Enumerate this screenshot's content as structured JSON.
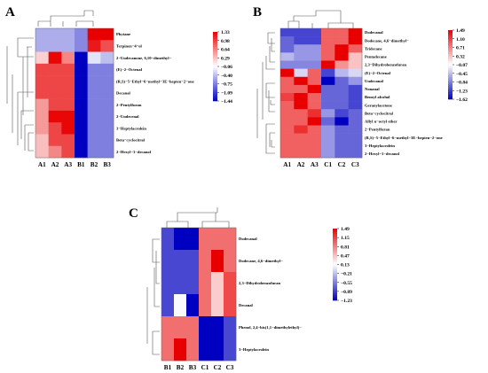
{
  "chart_data": [
    {
      "type": "heatmap",
      "panel_label": "A",
      "columns": [
        "A1",
        "A2",
        "A3",
        "B1",
        "B2",
        "B3"
      ],
      "rows": [
        "Phytane",
        "Terpinen−4−ol",
        "2−Undecanone, 6,10−dimethyl−",
        "(E)−2−Octenal",
        "(R,S)−5−Ethyl−6−methyl−3E−hepten−2−one",
        "Decanal",
        "2−Pentylfuran",
        "2−Undecenal",
        "3−Heptylacrolein",
        "Beta−cyclocitral",
        "2−Hexyl−1−decanol"
      ],
      "values": [
        [
          -0.5,
          -0.5,
          -0.5,
          -0.7,
          1.33,
          1.33
        ],
        [
          -0.5,
          -0.5,
          -0.5,
          -0.7,
          1.2,
          0.9
        ],
        [
          0.2,
          1.3,
          0.6,
          -1.44,
          -0.2,
          -0.4
        ],
        [
          0.95,
          0.95,
          0.95,
          -1.44,
          -0.75,
          -0.75
        ],
        [
          0.95,
          0.95,
          0.95,
          -1.44,
          -0.75,
          -0.75
        ],
        [
          0.95,
          0.95,
          0.95,
          -1.44,
          -0.75,
          -0.75
        ],
        [
          0.5,
          0.95,
          0.95,
          -1.44,
          -0.75,
          -0.75
        ],
        [
          0.5,
          1.3,
          1.3,
          -1.44,
          -0.75,
          -0.75
        ],
        [
          0.5,
          0.95,
          1.3,
          -1.44,
          -0.75,
          -0.75
        ],
        [
          0.3,
          0.95,
          0.95,
          -1.44,
          -0.75,
          -0.75
        ],
        [
          0.3,
          0.6,
          0.95,
          -1.44,
          -0.75,
          -0.75
        ]
      ],
      "legend_ticks": [
        "1.33",
        "0.98",
        "0.64",
        "0.29",
        "−0.06",
        "−0.40",
        "−0.75",
        "−1.09",
        "−1.44"
      ],
      "vmin": -1.44,
      "vmax": 1.33
    },
    {
      "type": "heatmap",
      "panel_label": "B",
      "columns": [
        "A1",
        "A2",
        "A3",
        "C1",
        "C2",
        "C3"
      ],
      "rows": [
        "Dodecanal",
        "Dodecane, 4,6−dimethyl−",
        "Tridecane",
        "Pentadecane",
        "2,3−Dihydrobenzofuran",
        "(E)−2−Octenal",
        "Undecanal",
        "Nonanal",
        "Benzyl alcohol",
        "Geranylacetone",
        "Beta−cyclocitral",
        "Allyl n−octyl ether",
        "2−Pentylfuran",
        "(R,S)−5−Ethyl−6−methyl−3E−hepten−2−one",
        "3−Heptylacrolein",
        "2−Hexyl−1−decanol"
      ],
      "values": [
        [
          -1.2,
          -1.2,
          -1.2,
          0.9,
          0.9,
          1.49
        ],
        [
          -1.0,
          -1.2,
          -1.2,
          0.9,
          0.9,
          1.49
        ],
        [
          -1.0,
          -0.7,
          -0.7,
          0.9,
          1.49,
          0.9
        ],
        [
          -0.5,
          -0.7,
          -0.7,
          0.9,
          1.49,
          0.3
        ],
        [
          -0.8,
          -0.8,
          -0.8,
          1.49,
          0.6,
          0.3
        ],
        [
          1.49,
          -0.3,
          0.9,
          -1.2,
          -0.5,
          -0.3
        ],
        [
          0.9,
          1.49,
          0.9,
          -1.62,
          -1.0,
          -0.7
        ],
        [
          0.9,
          0.9,
          1.49,
          -1.0,
          -1.0,
          -1.2
        ],
        [
          1.1,
          1.49,
          0.9,
          -1.0,
          -1.0,
          -1.2
        ],
        [
          0.9,
          1.49,
          0.9,
          -1.0,
          -1.0,
          -1.2
        ],
        [
          0.9,
          0.9,
          1.2,
          -0.7,
          -1.2,
          -1.0
        ],
        [
          0.9,
          0.9,
          1.49,
          -1.0,
          -1.62,
          -1.0
        ],
        [
          0.9,
          1.2,
          0.9,
          -0.7,
          -1.0,
          -1.0
        ],
        [
          0.9,
          0.9,
          0.9,
          -0.7,
          -1.0,
          -1.0
        ],
        [
          0.9,
          0.9,
          0.9,
          -0.7,
          -1.0,
          -1.0
        ],
        [
          0.9,
          0.9,
          0.9,
          -0.7,
          -1.0,
          -1.0
        ]
      ],
      "legend_ticks": [
        "1.49",
        "1.10",
        "0.71",
        "0.32",
        "−0.07",
        "−0.45",
        "−0.84",
        "−1.23",
        "−1.62"
      ],
      "vmin": -1.62,
      "vmax": 1.49
    },
    {
      "type": "heatmap",
      "panel_label": "C",
      "columns": [
        "B1",
        "B2",
        "B3",
        "C1",
        "C2",
        "C3"
      ],
      "rows": [
        "Dodecanal",
        "Dodecane, 4,6−dimethyl−",
        "2,3−Dihydrobenzofuran",
        "Decanal",
        "Phenol, 2,4−bis(1,1−dimethylethyl)−",
        "3−Heptylacrolein"
      ],
      "values": [
        [
          -0.85,
          -1.23,
          -1.23,
          0.9,
          0.9,
          0.9
        ],
        [
          -0.85,
          -0.85,
          -0.85,
          0.9,
          1.49,
          0.9
        ],
        [
          -0.85,
          -0.85,
          -0.85,
          0.9,
          0.4,
          1.1
        ],
        [
          -0.85,
          0.1,
          -1.23,
          0.9,
          0.4,
          1.1
        ],
        [
          0.9,
          0.9,
          0.9,
          -1.23,
          -1.23,
          -0.85
        ],
        [
          0.9,
          1.49,
          0.9,
          -1.23,
          -1.23,
          -0.85
        ]
      ],
      "legend_ticks": [
        "1.49",
        "1.15",
        "0.81",
        "0.47",
        "0.13",
        "−0.21",
        "−0.55",
        "−0.89",
        "−1.23"
      ],
      "vmin": -1.23,
      "vmax": 1.49
    }
  ]
}
